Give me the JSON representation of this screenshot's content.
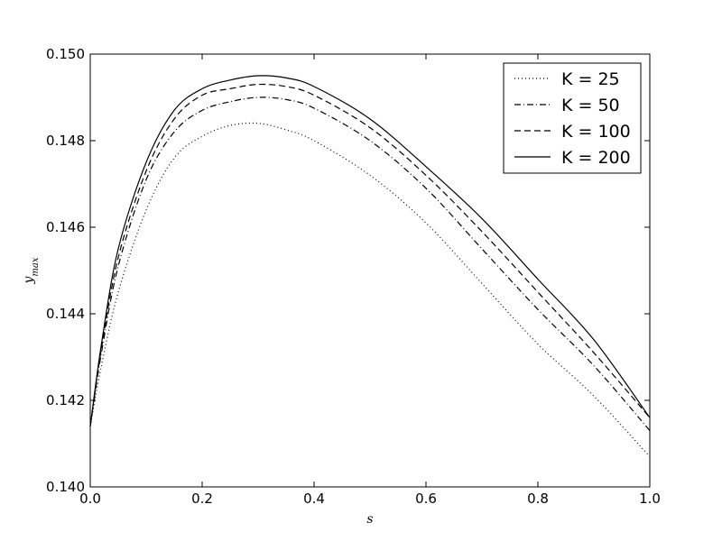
{
  "chart_data": {
    "type": "line",
    "title": "",
    "xlabel": "s",
    "ylabel": "y",
    "ylabel_subscript": "max",
    "xlim": [
      0.0,
      1.0
    ],
    "ylim": [
      0.14,
      0.15
    ],
    "xticks": [
      "0.0",
      "0.2",
      "0.4",
      "0.6",
      "0.8",
      "1.0"
    ],
    "yticks": [
      "0.140",
      "0.142",
      "0.144",
      "0.146",
      "0.148",
      "0.150"
    ],
    "grid": false,
    "legend_position": "top-right",
    "x": [
      0.0,
      0.02,
      0.05,
      0.1,
      0.15,
      0.2,
      0.25,
      0.3,
      0.35,
      0.4,
      0.5,
      0.6,
      0.7,
      0.8,
      0.9,
      1.0
    ],
    "series": [
      {
        "name": "K = 25",
        "style": "dotted",
        "color": "#000000",
        "values": [
          0.1414,
          0.1428,
          0.1445,
          0.1464,
          0.1476,
          0.1481,
          0.14835,
          0.1484,
          0.14825,
          0.148,
          0.1472,
          0.1461,
          0.1447,
          0.1433,
          0.1421,
          0.1407
        ]
      },
      {
        "name": "K = 50",
        "style": "dashdot",
        "color": "#000000",
        "values": [
          0.1414,
          0.1431,
          0.1451,
          0.1471,
          0.1482,
          0.1487,
          0.1489,
          0.149,
          0.14895,
          0.14875,
          0.148,
          0.1469,
          0.1455,
          0.1441,
          0.1428,
          0.1413
        ]
      },
      {
        "name": "K = 100",
        "style": "dashed",
        "color": "#000000",
        "values": [
          0.1414,
          0.1432,
          0.1453,
          0.1473,
          0.1485,
          0.14905,
          0.1492,
          0.1493,
          0.14925,
          0.14905,
          0.1483,
          0.1472,
          0.1459,
          0.1445,
          0.1431,
          0.1416
        ]
      },
      {
        "name": "K = 200",
        "style": "solid",
        "color": "#000000",
        "values": [
          0.1414,
          0.1433,
          0.1455,
          0.1475,
          0.1487,
          0.1492,
          0.1494,
          0.1495,
          0.14945,
          0.14925,
          0.1485,
          0.1474,
          0.1462,
          0.1448,
          0.1434,
          0.1416
        ]
      }
    ]
  }
}
